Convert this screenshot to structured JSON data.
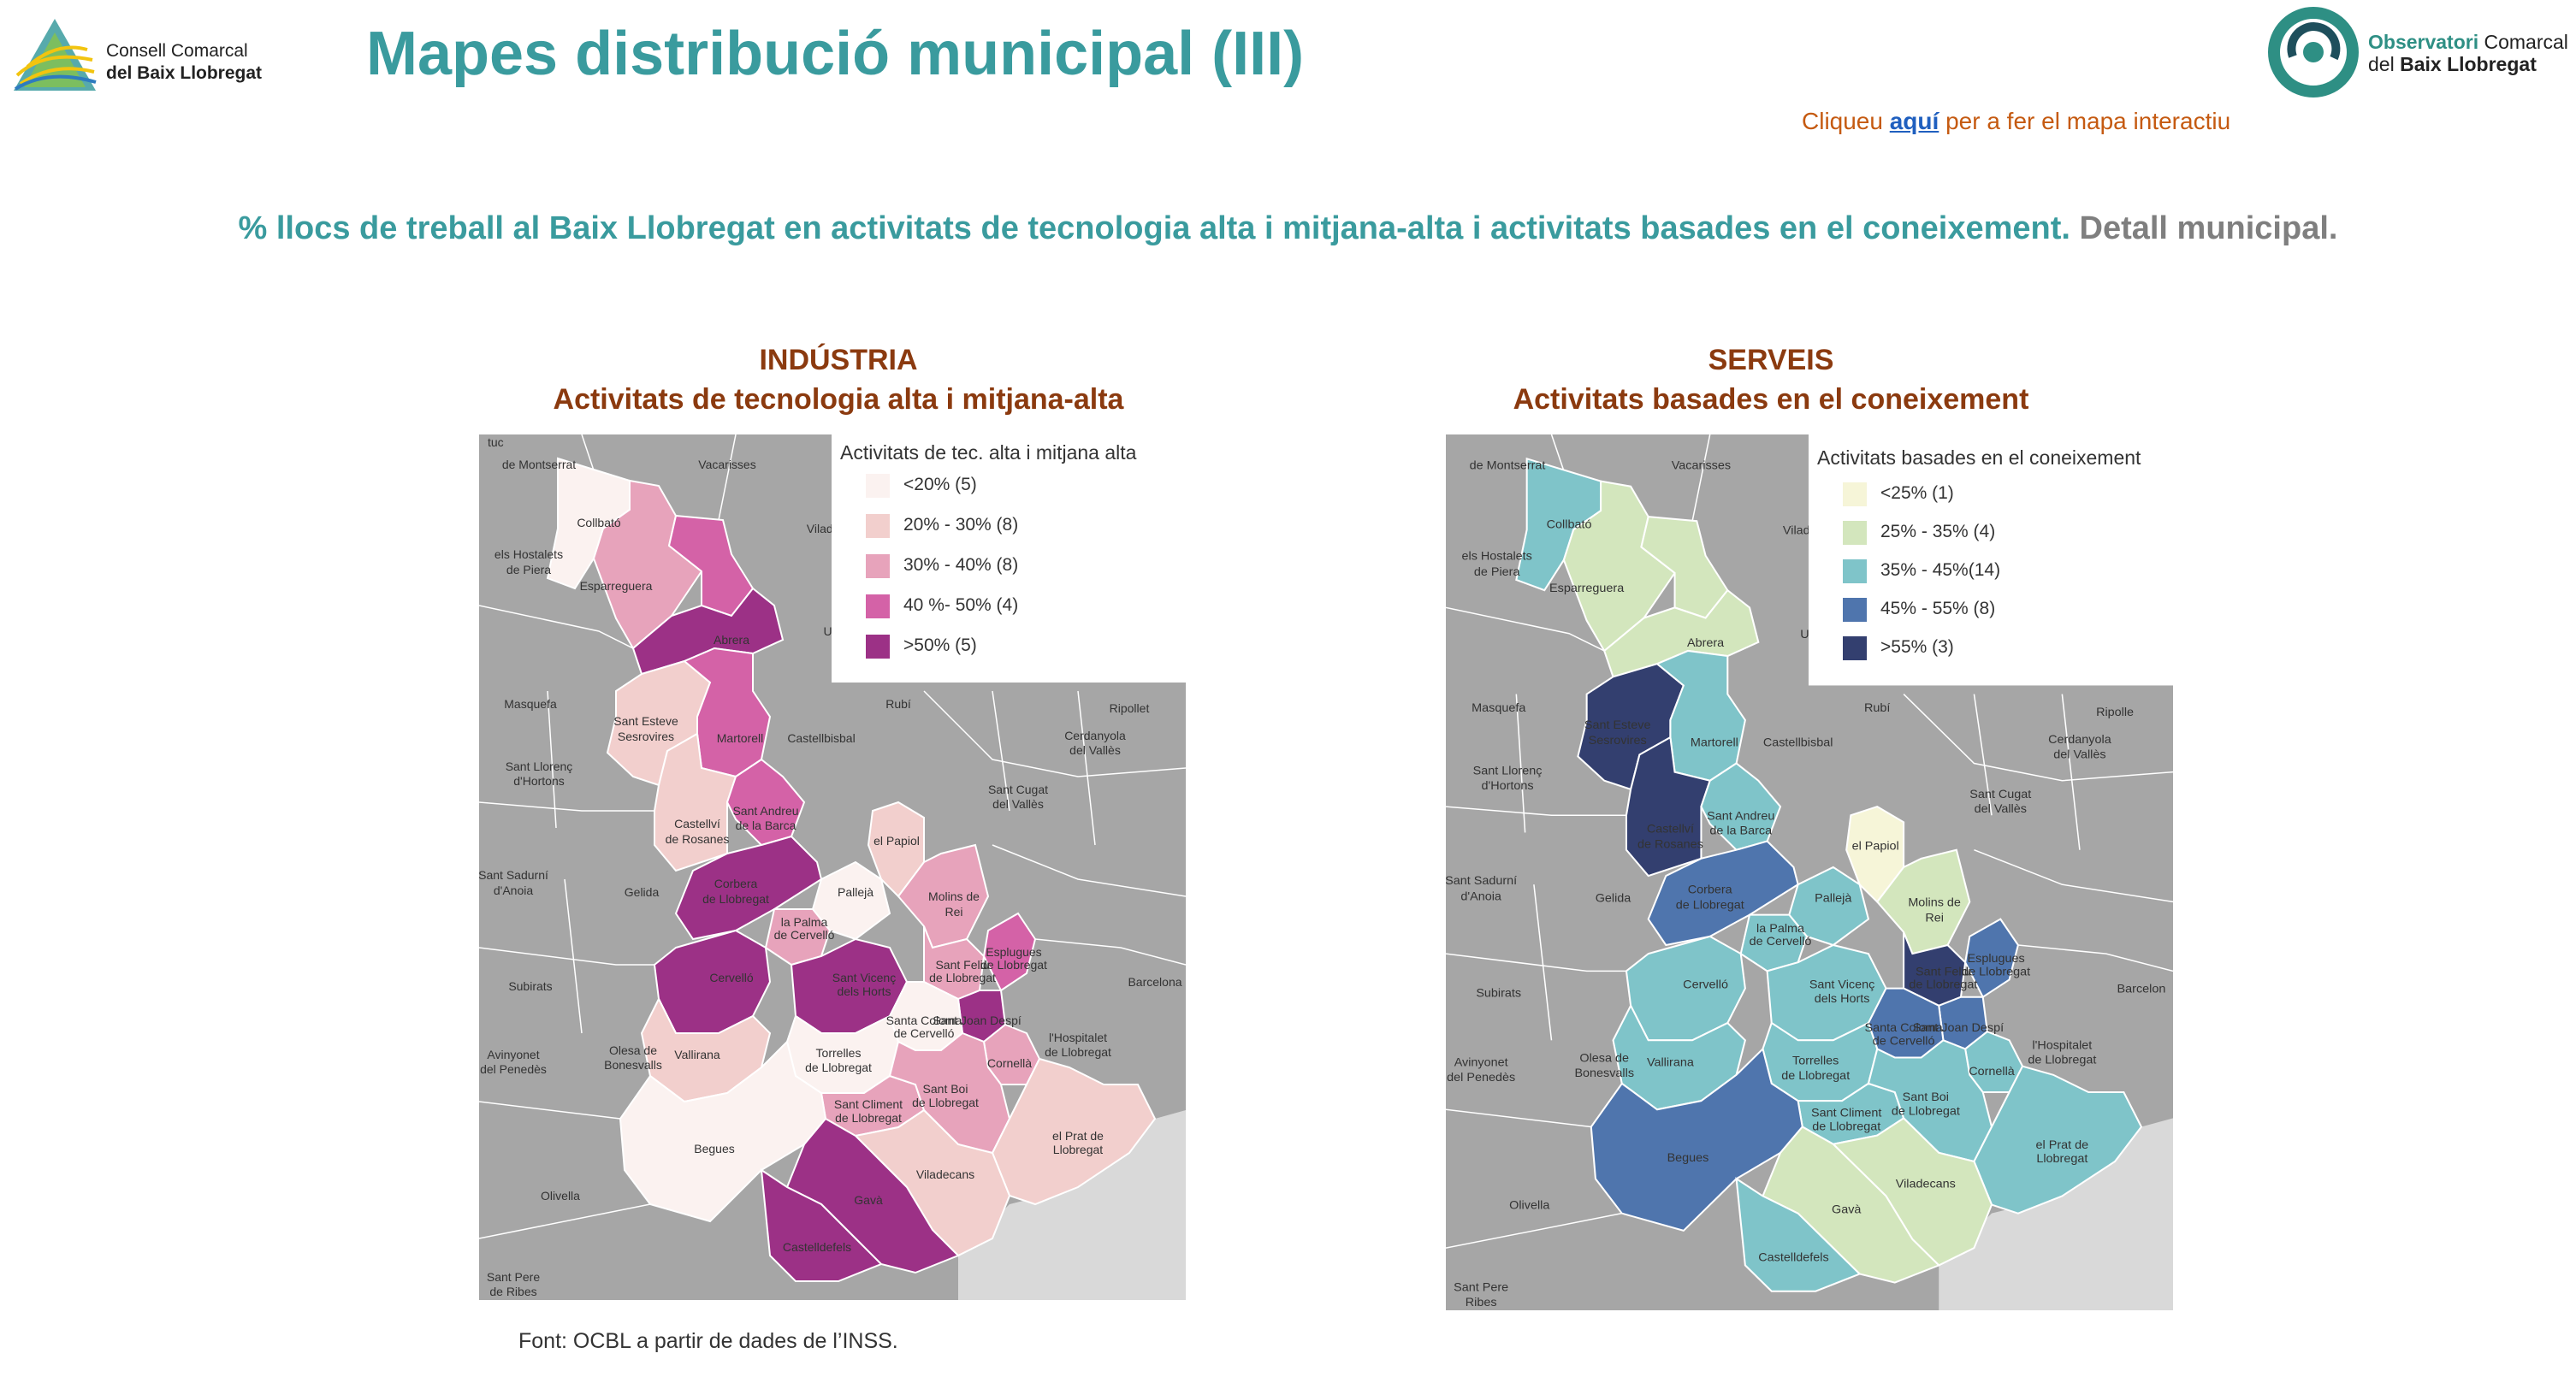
{
  "header": {
    "left_logo": {
      "line1": "Consell Comarcal",
      "line2": "del Baix Llobregat"
    },
    "title": "Mapes distribució municipal (III)",
    "right_logo": {
      "line1_bold": "Observatori",
      "line1_light": "Comarcal",
      "line2_light": "del",
      "line2_bold": "Baix Llobregat"
    },
    "interactive": {
      "prefix": "Cliqueu ",
      "link": "aquí",
      "suffix": " per a fer el mapa interactiu"
    }
  },
  "subtitle": {
    "main": "% llocs de treball al Baix Llobregat en activitats de tecnologia alta i mitjana-alta i activitats basades en el coneixement.",
    "detail": " Detall municipal."
  },
  "maps": {
    "left": {
      "heading1": "INDÚSTRIA",
      "heading2": "Activitats de tecnologia alta i mitjana-alta",
      "legend_title": "Activitats de tec. alta i mitjana alta",
      "legend": [
        {
          "label": "<20% (5)",
          "color": "#fbf2f0"
        },
        {
          "label": "20% - 30% (8)",
          "color": "#f2cfcd"
        },
        {
          "label": "30% - 40% (8)",
          "color": "#e7a3bb"
        },
        {
          "label": "40 %- 50% (4)",
          "color": "#d462a7"
        },
        {
          "label": ">50% (5)",
          "color": "#9c3186"
        }
      ]
    },
    "right": {
      "heading1": "SERVEIS",
      "heading2": "Activitats basades en el coneixement",
      "legend_title": "Activitats basades en el coneixement",
      "legend": [
        {
          "label": "<25% (1)",
          "color": "#f6f5d8"
        },
        {
          "label": "25% - 35% (4)",
          "color": "#d3e6bd"
        },
        {
          "label": "35% - 45%(14)",
          "color": "#7fc4c9"
        },
        {
          "label": "45% - 55% (8)",
          "color": "#4f75ad"
        },
        {
          "label": ">55% (3)",
          "color": "#333f6f"
        }
      ]
    }
  },
  "place_labels_left": {
    "montserrat": "de Montserrat",
    "vacarisses": "Vacarisses",
    "viladecavalls": "Viladecavall",
    "ullastrell": "Ullast",
    "hostalets": "els Hostalets",
    "piera": "de Piera",
    "masquefa": "Masquefa",
    "rubi": "Rubí",
    "ripollet": "Ripollet",
    "cerdanyola1": "Cerdanyola",
    "cerdanyola2": "del Vallès",
    "castellbisbal": "Castellbisbal",
    "llorenc1": "Sant Llorenç",
    "llorenc2": "d'Hortons",
    "cugat1": "Sant Cugat",
    "cugat2": "del Vallès",
    "sadurni1": "Sant Sadurní",
    "sadurni2": "d'Anoia",
    "gelida": "Gelida",
    "subirats": "Subirats",
    "barcelona": "Barcelona",
    "avinyonet1": "Avinyonet",
    "avinyonet2": "del Penedès",
    "olesa1": "Olesa de",
    "olesa2": "Bonesvalls",
    "hospitalet1": "l'Hospitalet",
    "hospitalet2": "de Llobregat",
    "olivella": "Olivella",
    "pere1": "Sant Pere",
    "pere2": "de Ribes",
    "tuc": "tuc"
  },
  "place_labels_right": {
    "montserrat": "de Montserrat",
    "vacarisses": "Vacarisses",
    "viladecavalls": "Viladecavall",
    "ullastrell": "Ullast",
    "hostalets": "els Hostalets",
    "piera": "de Piera",
    "masquefa": "Masquefa",
    "rubi": "Rubí",
    "ripollet": "Ripolle",
    "cerdanyola1": "Cerdanyola",
    "cerdanyola2": "del Vallès",
    "castellbisbal": "Castellbisbal",
    "llorenc1": "Sant Llorenç",
    "llorenc2": "d'Hortons",
    "cugat1": "Sant Cugat",
    "cugat2": "del Vallès",
    "sadurni1": "Sant Sadurní",
    "sadurni2": "d'Anoia",
    "gelida": "Gelida",
    "subirats": "Subirats",
    "barcelona": "Barcelon",
    "avinyonet1": "Avinyonet",
    "avinyonet2": "del Penedès",
    "olesa1": "Olesa de",
    "olesa2": "Bonesvalls",
    "hospitalet1": "l'Hospitalet",
    "hospitalet2": "de Llobregat",
    "olivella": "Olivella",
    "pere1": "Sant Pere",
    "pere2": "Ribes"
  },
  "municipality_labels": {
    "collbato": "Collbató",
    "esparreguera": "Esparreguera",
    "abrera": "Abrera",
    "esteve1": "Sant Esteve",
    "esteve2": "Sesrovires",
    "martorell": "Martorell",
    "castellvi1": "Castellví",
    "castellvi2": "de Rosanes",
    "andreu1": "Sant Andreu",
    "andreu2": "de la Barca",
    "papiol": "el Papiol",
    "corbera1": "Corbera",
    "corbera2": "de Llobregat",
    "pallejar": "Pallejà",
    "palma1": "la Palma",
    "palma2": "de Cervelló",
    "molins1": "Molins de",
    "molins2": "Rei",
    "cervello": "Cervelló",
    "vicenc1": "Sant Vicenç",
    "vicenc2": "dels Horts",
    "feliu1": "Sant Feliu",
    "feliu2": "de Llobregat",
    "esplugues1": "Esplugues",
    "esplugues2": "de Llobregat",
    "vallirana": "Vallirana",
    "coloma1": "Santa Coloma",
    "coloma2": "de Cervelló",
    "joan": "Sant Joan Despí",
    "torrelles1": "Torrelles",
    "torrelles2": "de Llobregat",
    "climent1": "Sant Climent",
    "climent2": "de Llobregat",
    "boi1": "Sant Boi",
    "boi2": "de Llobregat",
    "cornella": "Cornellà",
    "begues": "Begues",
    "prat1": "el Prat de",
    "prat2": "Llobregat",
    "viladecans": "Viladecans",
    "gava": "Gavà",
    "castelldefels": "Castelldefels"
  },
  "source": "Font: OCBL a partir de dades de l’INSS."
}
